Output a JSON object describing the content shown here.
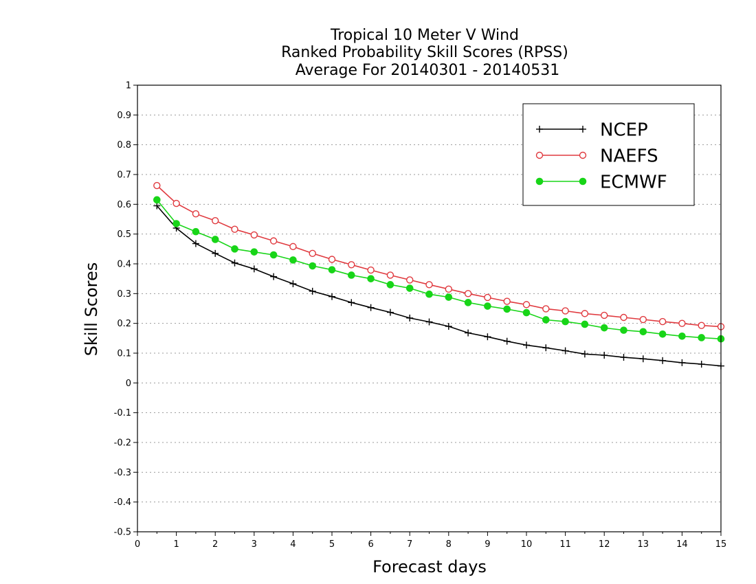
{
  "chart_data": {
    "type": "line",
    "title": [
      "Tropical 10 Meter V Wind",
      "Ranked Probability Skill Scores (RPSS)",
      "Average For 20140301 - 20140531"
    ],
    "xlabel": "Forecast days",
    "ylabel": "Skill Scores",
    "xlim": [
      0,
      15
    ],
    "ylim": [
      -0.5,
      1
    ],
    "xticks": [
      "0",
      "1",
      "2",
      "3",
      "4",
      "5",
      "6",
      "7",
      "8",
      "9",
      "10",
      "11",
      "12",
      "13",
      "14",
      "15"
    ],
    "yticks": [
      "-0.5",
      "-0.4",
      "-0.3",
      "-0.2",
      "-0.1",
      "0",
      "0.1",
      "0.2",
      "0.3",
      "0.4",
      "0.5",
      "0.6",
      "0.7",
      "0.8",
      "0.9",
      "1"
    ],
    "grid": "horizontal dotted",
    "legend_position": "top-right",
    "x": [
      0.5,
      1,
      1.5,
      2,
      2.5,
      3,
      3.5,
      4,
      4.5,
      5,
      5.5,
      6,
      6.5,
      7,
      7.5,
      8,
      8.5,
      9,
      9.5,
      10,
      10.5,
      11,
      11.5,
      12,
      12.5,
      13,
      13.5,
      14,
      14.5,
      15
    ],
    "series": [
      {
        "name": "NCEP",
        "color": "#000000",
        "marker": "plus",
        "values": [
          0.595,
          0.52,
          0.468,
          0.435,
          0.403,
          0.383,
          0.357,
          0.333,
          0.308,
          0.29,
          0.27,
          0.253,
          0.237,
          0.218,
          0.205,
          0.19,
          0.168,
          0.155,
          0.14,
          0.127,
          0.118,
          0.108,
          0.097,
          0.093,
          0.086,
          0.081,
          0.075,
          0.068,
          0.063,
          0.057
        ]
      },
      {
        "name": "NAEFS",
        "color": "#e0393e",
        "marker": "open-circle",
        "values": [
          0.663,
          0.603,
          0.568,
          0.545,
          0.516,
          0.497,
          0.477,
          0.458,
          0.435,
          0.415,
          0.397,
          0.379,
          0.362,
          0.346,
          0.33,
          0.315,
          0.3,
          0.287,
          0.274,
          0.263,
          0.249,
          0.242,
          0.233,
          0.227,
          0.22,
          0.213,
          0.206,
          0.2,
          0.193,
          0.189
        ]
      },
      {
        "name": "ECMWF",
        "color": "#18d518",
        "marker": "filled-circle",
        "values": [
          0.615,
          0.535,
          0.508,
          0.482,
          0.45,
          0.44,
          0.43,
          0.413,
          0.393,
          0.38,
          0.362,
          0.35,
          0.33,
          0.318,
          0.298,
          0.288,
          0.27,
          0.258,
          0.248,
          0.236,
          0.212,
          0.206,
          0.197,
          0.185,
          0.177,
          0.172,
          0.164,
          0.157,
          0.152,
          0.148
        ]
      }
    ]
  }
}
